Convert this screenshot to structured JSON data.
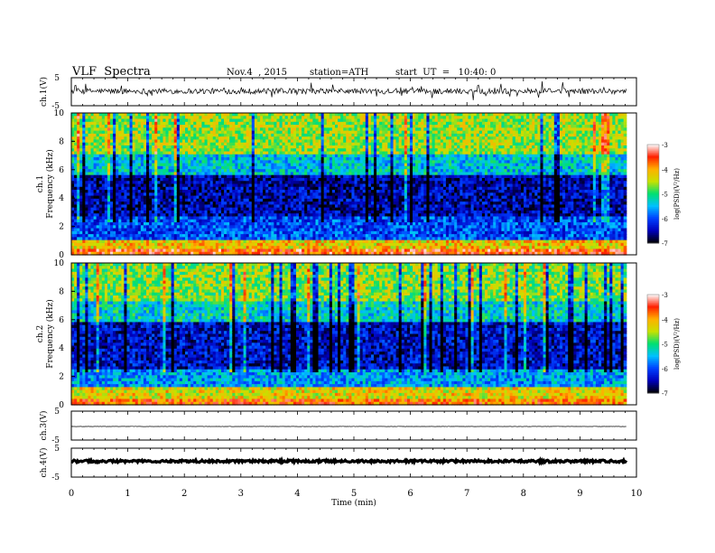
{
  "header": {
    "title": "VLF  Spectra",
    "date": "Nov.4  , 2015",
    "station": "station=ATH",
    "start_time": "start  UT  =   10:40: 0"
  },
  "chart_data": [
    {
      "type": "line",
      "name": "ch1-waveform",
      "ylabel": "ch.1(V)",
      "ylim": [
        -5,
        5
      ],
      "yticks": [
        "5",
        "-5"
      ],
      "xlim": [
        0,
        10
      ],
      "summary": {
        "baseline_v": 0.2,
        "typical_amplitude_v": 1.0,
        "spike_amplitude_v": 3.0,
        "end_time_min": 9.82
      }
    },
    {
      "type": "heatmap",
      "name": "ch1-spectrogram",
      "ylabel_top": "ch.1",
      "ylabel": "Frequency  (kHz)",
      "ylim": [
        0,
        10
      ],
      "yticks": [
        "0",
        "2",
        "4",
        "6",
        "8",
        "10"
      ],
      "xlim": [
        0,
        10
      ],
      "data_end_min": 9.82,
      "colorbar": {
        "label": "log(PSD)(V²/Hz)",
        "range": [
          -7,
          -3
        ],
        "ticks": [
          "-3",
          "-4",
          "-5",
          "-6",
          "-7"
        ],
        "colormap": [
          "#000000",
          "#0000bb",
          "#0040ff",
          "#00c0ff",
          "#00e070",
          "#c8e000",
          "#ffb000",
          "#ff2000",
          "#ffffff"
        ]
      },
      "band_profile_log_psd": [
        {
          "f_khz": [
            0,
            0.4
          ],
          "level": -3.6
        },
        {
          "f_khz": [
            0.4,
            1.0
          ],
          "level": -4.2
        },
        {
          "f_khz": [
            1.0,
            2.7
          ],
          "level": -6.0
        },
        {
          "f_khz": [
            2.7,
            5.7
          ],
          "level": -6.5
        },
        {
          "f_khz": [
            5.7,
            7.0
          ],
          "level": -5.4
        },
        {
          "f_khz": [
            7.0,
            10.0
          ],
          "level": -4.6
        }
      ]
    },
    {
      "type": "heatmap",
      "name": "ch2-spectrogram",
      "ylabel_top": "ch.2",
      "ylabel": "Frequency  (kHz)",
      "ylim": [
        0,
        10
      ],
      "yticks": [
        "0",
        "2",
        "4",
        "6",
        "8",
        "10"
      ],
      "xlim": [
        0,
        10
      ],
      "data_end_min": 9.82,
      "colorbar": {
        "label": "log(PSD)(V²/Hz)",
        "range": [
          -7,
          -3
        ],
        "ticks": [
          "-3",
          "-4",
          "-5",
          "-6",
          "-7"
        ]
      },
      "band_profile_log_psd": [
        {
          "f_khz": [
            0,
            0.4
          ],
          "level": -3.8
        },
        {
          "f_khz": [
            0.4,
            1.3
          ],
          "level": -4.3
        },
        {
          "f_khz": [
            1.3,
            2.6
          ],
          "level": -5.6
        },
        {
          "f_khz": [
            2.6,
            5.9
          ],
          "level": -6.4
        },
        {
          "f_khz": [
            5.9,
            7.2
          ],
          "level": -5.3
        },
        {
          "f_khz": [
            7.2,
            10.0
          ],
          "level": -4.7
        }
      ]
    },
    {
      "type": "line",
      "name": "ch3-waveform",
      "ylabel": "ch.3(V)",
      "ylim": [
        -5,
        5
      ],
      "yticks": [
        "5",
        "-5"
      ],
      "xlim": [
        0,
        10
      ],
      "summary": {
        "baseline_v": -0.3,
        "typical_amplitude_v": 0.05,
        "end_time_min": 9.82
      }
    },
    {
      "type": "line",
      "name": "ch4-waveform",
      "ylabel": "ch.4(V)",
      "ylim": [
        -5,
        5
      ],
      "yticks": [
        "5",
        "-5"
      ],
      "xlim": [
        0,
        10
      ],
      "xlabel": "Time  (min)",
      "xticks": [
        "0",
        "1",
        "2",
        "3",
        "4",
        "5",
        "6",
        "7",
        "8",
        "9",
        "10"
      ],
      "summary": {
        "baseline_v": 0.5,
        "typical_amplitude_v": 0.4,
        "end_time_min": 9.82
      }
    }
  ]
}
